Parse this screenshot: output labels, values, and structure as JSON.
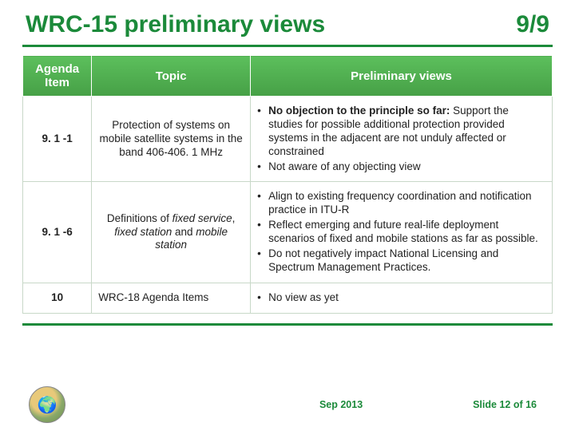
{
  "title": {
    "text": "WRC-15 preliminary views",
    "pager": "9/9",
    "fontsize": 30,
    "color": "#1b8a3a"
  },
  "rule_color": "#1b8a3a",
  "table": {
    "header_bg": "#5cb85c",
    "header_fg": "#ffffff",
    "border_color": "#c8d8c8",
    "header_fontsize": 15,
    "cell_fontsize": 13.5,
    "columns": [
      {
        "label": "Agenda Item",
        "width_pct": 13
      },
      {
        "label": "Topic",
        "width_pct": 30
      },
      {
        "label": "Preliminary views",
        "width_pct": 57
      }
    ],
    "rows": [
      {
        "agenda": "9. 1 -1",
        "topic_html": "Protection of systems on mobile satellite systems in the band 406-406. 1 MHz",
        "views": [
          {
            "lead_bold": "No objection to the principle so far:",
            "rest": " Support the studies for possible additional protection provided systems in the adjacent are not unduly affected or constrained"
          },
          {
            "lead_bold": "",
            "rest": "Not aware of any objecting view"
          }
        ]
      },
      {
        "agenda": "9. 1 -6",
        "topic_html": "Definitions of <em>fixed service</em>, <em>fixed station</em> and <em>mobile station</em>",
        "views": [
          {
            "lead_bold": "",
            "rest": "Align to existing frequency coordination and notification practice in ITU-R"
          },
          {
            "lead_bold": "",
            "rest": "Reflect emerging and future real-life deployment scenarios of fixed and mobile stations as far as possible."
          },
          {
            "lead_bold": "",
            "rest": "Do not negatively impact National Licensing and Spectrum Management Practices."
          }
        ]
      },
      {
        "agenda": "10",
        "topic_html": "WRC-18 Agenda Items",
        "topic_align": "left",
        "views": [
          {
            "lead_bold": "",
            "rest": "No view as yet"
          }
        ]
      }
    ]
  },
  "footer": {
    "date": "Sep 2013",
    "slide_label": "Slide 12 of 16",
    "fontsize": 12.5,
    "color": "#1b8a3a"
  },
  "logo": {
    "name": "globe-wreath-logo"
  }
}
